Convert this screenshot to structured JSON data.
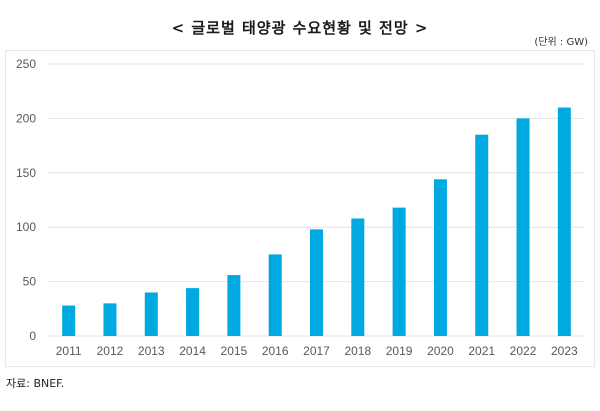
{
  "header": {
    "title": "< 글로벌 태양광 수요현황 및 전망 >",
    "unit": "(단위 : GW)"
  },
  "footer": {
    "source": "자료: BNEF."
  },
  "colors": {
    "bar": "#00a9e0",
    "grid": "#e4e4e4",
    "axis_text": "#595959"
  },
  "chart_data": {
    "type": "bar",
    "title": "< 글로벌 태양광 수요현황 및 전망 >",
    "xlabel": "",
    "ylabel": "(단위 : GW)",
    "categories": [
      "2011",
      "2012",
      "2013",
      "2014",
      "2015",
      "2016",
      "2017",
      "2018",
      "2019",
      "2020",
      "2021",
      "2022",
      "2023"
    ],
    "values": [
      28,
      30,
      40,
      44,
      56,
      75,
      98,
      108,
      118,
      144,
      185,
      200,
      210
    ],
    "ylim": [
      0,
      250
    ],
    "yticks": [
      "0",
      "50",
      "100",
      "150",
      "200",
      "250"
    ],
    "grid": true,
    "legend": "none"
  }
}
